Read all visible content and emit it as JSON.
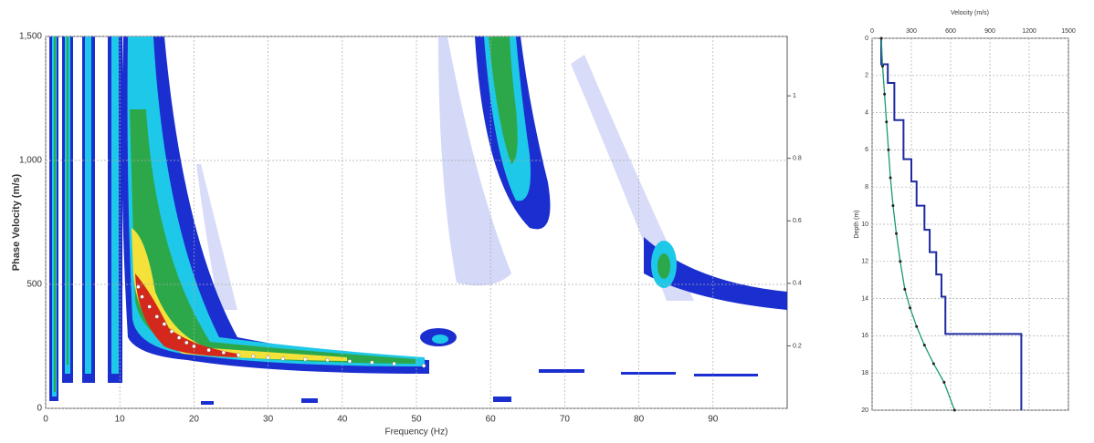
{
  "chart_data": [
    {
      "type": "scatter",
      "xlabel": "Frequency (Hz)",
      "ylabel": "Phase Velocity (m/s)",
      "x": [
        12.5,
        13,
        14,
        15,
        16,
        17,
        18,
        19,
        20,
        22,
        24,
        26,
        28,
        30,
        32,
        35,
        38,
        41,
        44,
        47,
        51
      ],
      "values": [
        490,
        450,
        410,
        370,
        340,
        310,
        285,
        265,
        250,
        235,
        225,
        215,
        210,
        205,
        200,
        198,
        195,
        190,
        185,
        180,
        172
      ],
      "color": "#ffffff",
      "xlim": [
        0,
        100
      ],
      "xticks": [
        0,
        10,
        20,
        30,
        40,
        50,
        60,
        70,
        80,
        90
      ],
      "ylim": [
        0,
        1500
      ],
      "yticks": [
        0,
        500,
        {
          "value": 1000,
          "label": "1,000"
        },
        {
          "value": 1500,
          "label": "1,500"
        }
      ],
      "y2lim": [
        0,
        1.19
      ],
      "y2ticks": [
        0.2,
        0.4,
        0.6,
        0.8,
        1
      ],
      "grid": true
    },
    {
      "type": "line",
      "xlabel": "Velocity (m/s)",
      "ylabel": "Depth (m)",
      "series": [
        {
          "color": "#1f2aa0",
          "x": [
            70,
            70,
            120,
            120,
            170,
            170,
            240,
            240,
            300,
            300,
            340,
            340,
            400,
            400,
            440,
            440,
            490,
            490,
            530,
            530,
            560,
            560,
            1140,
            1140
          ],
          "values": [
            0,
            1.4,
            1.4,
            2.4,
            2.4,
            4.4,
            4.4,
            6.5,
            6.5,
            7.7,
            7.7,
            9.0,
            9.0,
            10.3,
            10.3,
            11.5,
            11.5,
            12.7,
            12.7,
            13.9,
            13.9,
            15.9,
            15.9,
            20
          ]
        },
        {
          "color": "#1a9a6a",
          "x": [
            70,
            80,
            95,
            110,
            125,
            140,
            160,
            185,
            215,
            250,
            290,
            340,
            400,
            470,
            550,
            630
          ],
          "values": [
            0,
            1.5,
            3,
            4.5,
            6,
            7.5,
            9,
            10.5,
            12,
            13.5,
            14.5,
            15.5,
            16.5,
            17.5,
            18.5,
            20
          ]
        }
      ],
      "xlim": [
        0,
        1500
      ],
      "xticks": [
        0,
        300,
        600,
        900,
        1200,
        1500
      ],
      "ylim": [
        20,
        0
      ],
      "yticks": [
        0,
        2,
        4,
        6,
        8,
        10,
        12,
        14,
        16,
        18,
        20
      ],
      "grid": true
    }
  ]
}
